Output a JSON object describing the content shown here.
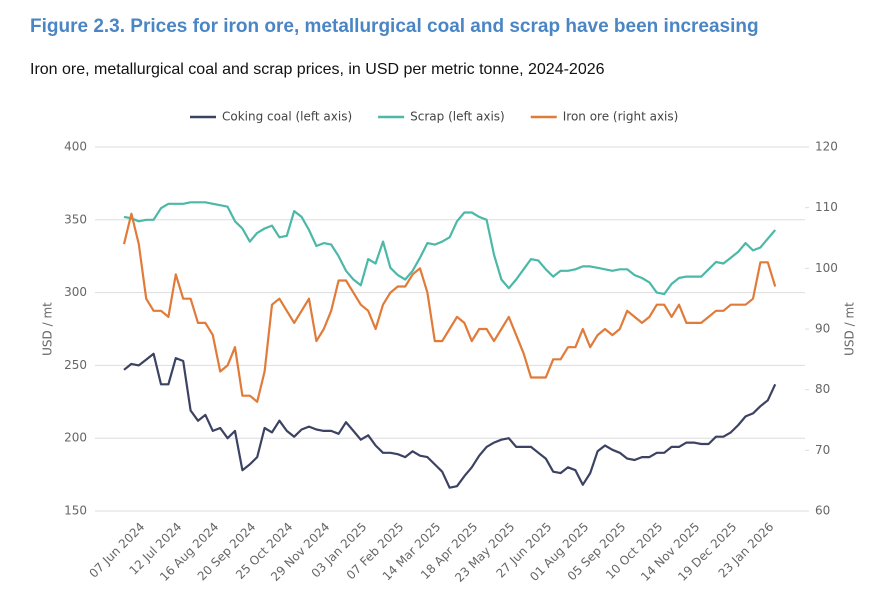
{
  "chart_data": {
    "type": "line",
    "title": "Figure 2.3. Prices for iron ore, metallurgical coal and scrap have been increasing",
    "subtitle": "Iron ore, metallurgical coal and scrap prices, in USD per metric tonne, 2024-2026",
    "y_label": "USD / mt",
    "y2_label": "USD / mt",
    "categories": [
      null,
      null,
      "07 Jun 2024",
      null,
      null,
      null,
      null,
      "12 Jul 2024",
      null,
      null,
      null,
      null,
      "16 Aug 2024",
      null,
      null,
      null,
      null,
      "20 Sep 2024",
      null,
      null,
      null,
      null,
      "25 Oct 2024",
      null,
      null,
      null,
      null,
      "29 Nov 2024",
      null,
      null,
      null,
      null,
      "03 Jan 2025",
      null,
      null,
      null,
      null,
      "07 Feb 2025",
      null,
      null,
      null,
      null,
      "14 Mar 2025",
      null,
      null,
      null,
      null,
      "18 Apr 2025",
      null,
      null,
      null,
      null,
      "23 May 2025",
      null,
      null,
      null,
      null,
      "27 Jun 2025",
      null,
      null,
      null,
      null,
      "01 Aug 2025",
      null,
      null,
      null,
      null,
      "05 Sep 2025",
      null,
      null,
      null,
      null,
      "10 Oct 2025",
      null,
      null,
      null,
      null,
      "14 Nov 2025",
      null,
      null,
      null,
      null,
      "19 Dec 2025",
      null,
      null,
      null,
      null,
      "23 Jan 2026",
      null
    ],
    "series": [
      {
        "name": "Coking coal (left axis)",
        "color": "#3c4262",
        "axis": "y",
        "values": [
          247,
          251,
          250,
          254,
          258,
          237,
          237,
          255,
          253,
          219,
          212,
          216,
          205,
          207,
          200,
          205,
          178,
          182,
          187,
          207,
          204,
          212,
          205,
          201,
          206,
          208,
          206,
          205,
          205,
          203,
          211,
          205,
          199,
          202,
          195,
          190,
          190,
          189,
          187,
          191,
          188,
          187,
          182,
          177,
          166,
          167,
          174,
          180,
          188,
          194,
          197,
          199,
          200,
          194,
          194,
          194,
          190,
          186,
          177,
          176,
          180,
          178,
          168,
          176,
          191,
          195,
          192,
          190,
          186,
          185,
          187,
          187,
          190,
          190,
          194,
          194,
          197,
          197,
          196,
          196,
          201,
          201,
          204,
          209,
          215,
          217,
          222,
          226,
          237
        ]
      },
      {
        "name": "Scrap (left axis)",
        "color": "#4cb8a8",
        "axis": "y",
        "values": [
          352,
          351,
          349,
          350,
          350,
          358,
          361,
          361,
          361,
          362,
          362,
          362,
          361,
          360,
          359,
          349,
          344,
          335,
          341,
          344,
          346,
          338,
          339,
          356,
          352,
          343,
          332,
          334,
          333,
          325,
          315,
          309,
          305,
          323,
          320,
          335,
          317,
          312,
          309,
          315,
          324,
          334,
          333,
          335,
          338,
          349,
          355,
          355,
          352,
          350,
          326,
          309,
          303,
          309,
          316,
          323,
          322,
          316,
          311,
          315,
          315,
          316,
          318,
          318,
          317,
          316,
          315,
          316,
          316,
          312,
          310,
          307,
          300,
          299,
          306,
          310,
          311,
          311,
          311,
          316,
          321,
          320,
          324,
          328,
          334,
          329,
          331,
          337,
          343
        ]
      },
      {
        "name": "Iron ore (right axis)",
        "color": "#e07b39",
        "axis": "y2",
        "values": [
          104,
          109,
          104,
          95,
          93,
          93,
          92,
          99,
          95,
          95,
          91,
          91,
          89,
          83,
          84,
          87,
          79,
          79,
          78,
          83,
          94,
          95,
          93,
          91,
          93,
          95,
          88,
          90,
          93,
          98,
          98,
          96,
          94,
          93,
          90,
          94,
          96,
          97,
          97,
          99,
          100,
          96,
          88,
          88,
          90,
          92,
          91,
          88,
          90,
          90,
          88,
          90,
          92,
          89,
          86,
          82,
          82,
          82,
          85,
          85,
          87,
          87,
          90,
          87,
          89,
          90,
          89,
          90,
          93,
          92,
          91,
          92,
          94,
          94,
          92,
          94,
          91,
          91,
          91,
          92,
          93,
          93,
          94,
          94,
          94,
          95,
          101,
          101,
          97
        ]
      }
    ],
    "ylim": [
      150,
      400
    ],
    "yticks": [
      150,
      200,
      250,
      300,
      350,
      400
    ],
    "y2lim": [
      60,
      120
    ],
    "y2ticks": [
      60,
      70,
      80,
      90,
      100,
      110,
      120
    ],
    "grid": true
  }
}
